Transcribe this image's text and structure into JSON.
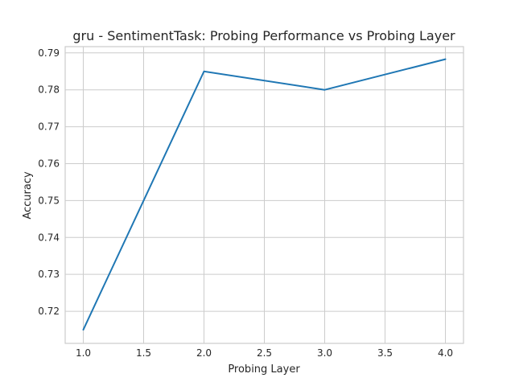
{
  "chart_data": {
    "type": "line",
    "title": "gru - SentimentTask: Probing Performance vs Probing Layer",
    "xlabel": "Probing Layer",
    "ylabel": "Accuracy",
    "x": [
      1.0,
      2.0,
      3.0,
      4.0
    ],
    "series": [
      {
        "values": [
          0.715,
          0.785,
          0.78,
          0.7883
        ]
      }
    ],
    "xlim": [
      0.85,
      4.15
    ],
    "ylim": [
      0.7113,
      0.7917
    ],
    "xticks": [
      "1.0",
      "1.5",
      "2.0",
      "2.5",
      "3.0",
      "3.5",
      "4.0"
    ],
    "yticks": [
      "0.72",
      "0.73",
      "0.74",
      "0.75",
      "0.76",
      "0.77",
      "0.78",
      "0.79"
    ],
    "grid": true,
    "colors": {
      "line": "#1f77b4",
      "grid": "#cccccc"
    }
  }
}
